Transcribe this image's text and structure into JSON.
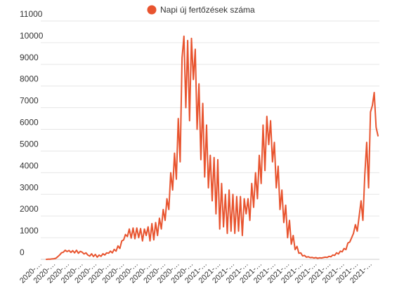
{
  "chart_data": {
    "type": "line",
    "legend": {
      "position": "top-center"
    },
    "series": [
      {
        "name": "Napi új fertőzések száma",
        "color": "#e8542f",
        "values": [
          0,
          10,
          5,
          20,
          30,
          50,
          120,
          200,
          300,
          330,
          420,
          360,
          410,
          320,
          400,
          300,
          420,
          280,
          370,
          330,
          250,
          300,
          200,
          150,
          260,
          130,
          230,
          100,
          200,
          140,
          260,
          200,
          300,
          280,
          380,
          300,
          460,
          380,
          620,
          500,
          850,
          900,
          1150,
          1050,
          1400,
          980,
          1450,
          950,
          1450,
          1000,
          1420,
          850,
          1400,
          1100,
          1500,
          850,
          1650,
          900,
          1700,
          1100,
          1900,
          1400,
          2300,
          1800,
          2800,
          2300,
          4000,
          3200,
          4900,
          3700,
          6500,
          4500,
          9300,
          10300,
          7000,
          10100,
          6400,
          10200,
          8300,
          9700,
          6000,
          8100,
          4600,
          7200,
          3800,
          6200,
          3300,
          4800,
          2700,
          4700,
          2100,
          4600,
          1400,
          3500,
          1500,
          3000,
          1200,
          3200,
          1300,
          3000,
          1200,
          2900,
          1300,
          2900,
          1100,
          2800,
          2100,
          2800,
          1800,
          3500,
          2400,
          4000,
          2800,
          4800,
          3500,
          6200,
          4100,
          6600,
          5300,
          6400,
          4500,
          5400,
          3300,
          4300,
          2300,
          3200,
          1700,
          2500,
          1000,
          1800,
          700,
          1100,
          450,
          600,
          280,
          300,
          160,
          180,
          100,
          120,
          80,
          90,
          60,
          80,
          50,
          70,
          60,
          80,
          100,
          90,
          140,
          120,
          200,
          180,
          300,
          250,
          380,
          350,
          500,
          450,
          750,
          800,
          1000,
          1200,
          1600,
          1300,
          2000,
          2700,
          1800,
          3900,
          5400,
          3300,
          6800,
          7100,
          7700,
          6100,
          5700
        ]
      }
    ],
    "x_tick_labels": [
      "2020-…",
      "2020-…",
      "2020-…",
      "2020-…",
      "2020-…",
      "2020-…",
      "2020-…",
      "2020-…",
      "2020-…",
      "2020-…",
      "2020-…",
      "2020-…",
      "2021-…",
      "2021-…",
      "2021-…",
      "2021-…",
      "2021-…",
      "2021-…",
      "2021-…",
      "2021-…",
      "2021-…",
      "2021-…",
      "2021-…",
      "2021-…",
      "2021-…"
    ],
    "y_tick_labels": [
      "0",
      "1000",
      "2000",
      "3000",
      "4000",
      "5000",
      "6000",
      "7000",
      "8000",
      "9000",
      "10000",
      "11000"
    ],
    "ylim": [
      0,
      11000
    ],
    "grid": true
  }
}
